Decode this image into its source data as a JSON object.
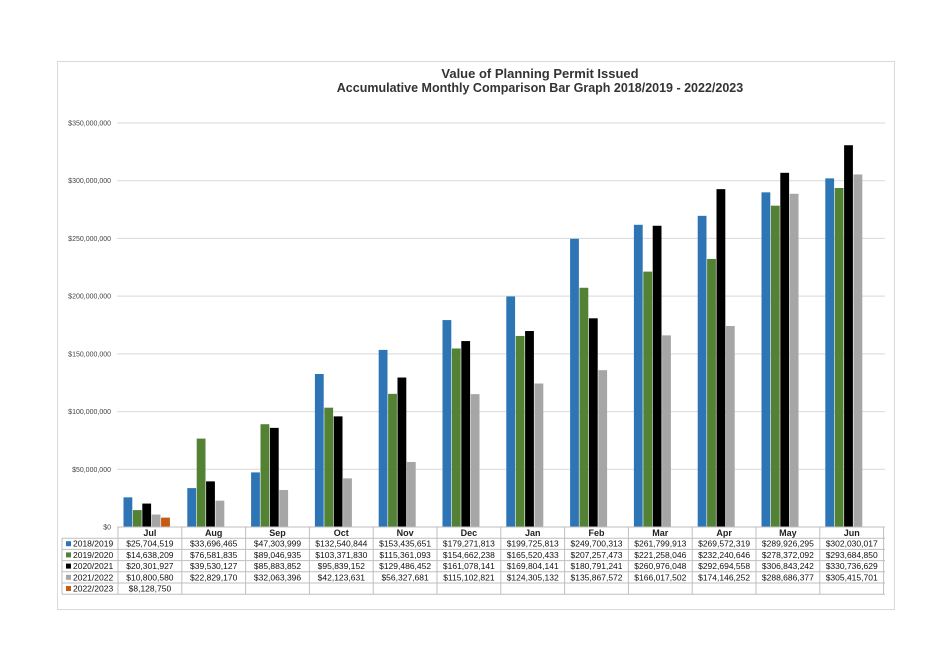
{
  "chart_data": {
    "type": "bar",
    "title": "Value of Planning Permit Issued",
    "subtitle": "Accumulative Monthly Comparison Bar Graph 2018/2019 - 2022/2023",
    "categories": [
      "Jul",
      "Aug",
      "Sep",
      "Oct",
      "Nov",
      "Dec",
      "Jan",
      "Feb",
      "Mar",
      "Apr",
      "May",
      "Jun"
    ],
    "ylim": [
      0,
      350000000
    ],
    "yticks": [
      "$0",
      "$50,000,000",
      "$100,000,000",
      "$150,000,000",
      "$200,000,000",
      "$250,000,000",
      "$300,000,000",
      "$350,000,000"
    ],
    "grid": true,
    "legend": "data-table",
    "series": [
      {
        "name": "2018/2019",
        "color": "#2e75b6",
        "values": [
          25704519,
          33696465,
          47303999,
          132540844,
          153435651,
          179271813,
          199725813,
          249700313,
          261799913,
          269572319,
          289926295,
          302030017
        ],
        "labels": [
          "$25,704,519",
          "$33,696,465",
          "$47,303,999",
          "$132,540,844",
          "$153,435,651",
          "$179,271,813",
          "$199,725,813",
          "$249,700,313",
          "$261,799,913",
          "$269,572,319",
          "$289,926,295",
          "$302,030,017"
        ]
      },
      {
        "name": "2019/2020",
        "color": "#548235",
        "values": [
          14638209,
          76581835,
          89046935,
          103371830,
          115361093,
          154662238,
          165520433,
          207257473,
          221258046,
          232240646,
          278372092,
          293684850
        ],
        "labels": [
          "$14,638,209",
          "$76,581,835",
          "$89,046,935",
          "$103,371,830",
          "$115,361,093",
          "$154,662,238",
          "$165,520,433",
          "$207,257,473",
          "$221,258,046",
          "$232,240,646",
          "$278,372,092",
          "$293,684,850"
        ]
      },
      {
        "name": "2020/2021",
        "color": "#000000",
        "values": [
          20301927,
          39530127,
          85883852,
          95839152,
          129486452,
          161078141,
          169804141,
          180791241,
          260976048,
          292694558,
          306843242,
          330736629
        ],
        "labels": [
          "$20,301,927",
          "$39,530,127",
          "$85,883,852",
          "$95,839,152",
          "$129,486,452",
          "$161,078,141",
          "$169,804,141",
          "$180,791,241",
          "$260,976,048",
          "$292,694,558",
          "$306,843,242",
          "$330,736,629"
        ]
      },
      {
        "name": "2021/2022",
        "color": "#a6a6a6",
        "values": [
          10800580,
          22829170,
          32063396,
          42123631,
          56327681,
          115102821,
          124305132,
          135867572,
          166017502,
          174146252,
          288686377,
          305415701
        ],
        "labels": [
          "$10,800,580",
          "$22,829,170",
          "$32,063,396",
          "$42,123,631",
          "$56,327,681",
          "$115,102,821",
          "$124,305,132",
          "$135,867,572",
          "$166,017,502",
          "$174,146,252",
          "$288,686,377",
          "$305,415,701"
        ]
      },
      {
        "name": "2022/2023",
        "color": "#c55a11",
        "values": [
          8128750,
          null,
          null,
          null,
          null,
          null,
          null,
          null,
          null,
          null,
          null,
          null
        ],
        "labels": [
          "$8,128,750",
          "",
          "",
          "",
          "",
          "",
          "",
          "",
          "",
          "",
          "",
          ""
        ]
      }
    ]
  }
}
